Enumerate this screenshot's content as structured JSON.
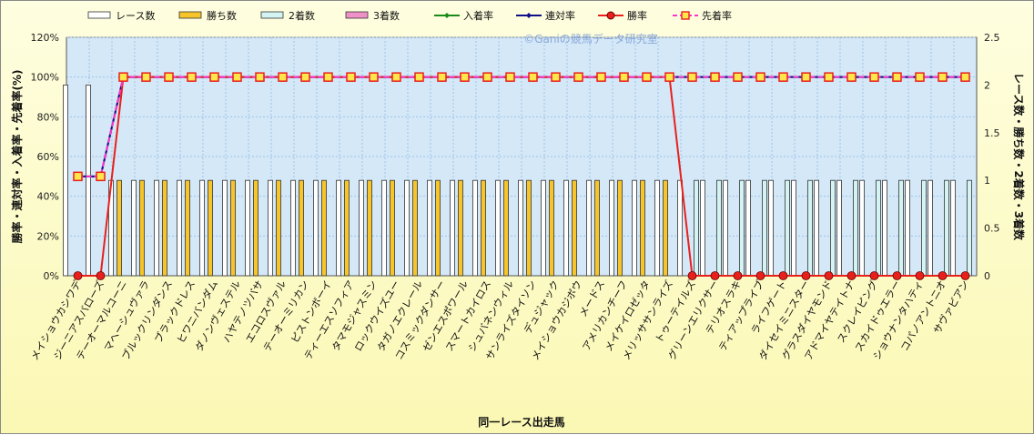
{
  "chart_data": {
    "type": "bar",
    "title": "",
    "credit": "©Ganiの競馬データ研究室",
    "xlabel": "同一レース出走馬",
    "ylabel_left": "勝率・連対率・入着率・先着率(%)",
    "ylabel_right": "レース数・勝ち数・2着数・3着数",
    "ylim_left": [
      0,
      120
    ],
    "ylim_right": [
      0,
      2.5
    ],
    "yticks_left": [
      "0%",
      "20%",
      "40%",
      "60%",
      "80%",
      "100%",
      "120%"
    ],
    "yticks_right": [
      "0",
      "0.5",
      "1",
      "1.5",
      "2",
      "2.5"
    ],
    "grid": true,
    "legend_position": "top",
    "categories": [
      "メイショウカシワデ",
      "ジーニアスバローズ",
      "テーオーマルコーニ",
      "マヘーシュヴァラ",
      "ブルックリンダンス",
      "ブラックドレス",
      "ヒワニバンダム",
      "ダノンヴェステル",
      "ハヤテノツバサ",
      "エコロスヴァル",
      "テーオーミリカン",
      "ピストンボーイ",
      "ティーエスソフィア",
      "タマモジャスミン",
      "ロックウイズユー",
      "タガノエクレール",
      "コスミックダンサー",
      "ゼンエスポワール",
      "スマートカイロス",
      "シュバネンウィル",
      "サンライズタイソン",
      "デュジャック",
      "メイショウカジボウ",
      "メードス",
      "アメリカンチーフ",
      "メイケイロゼッタ",
      "メリッササンライズ",
      "トゥーテイルズ",
      "グリーンエリクサー",
      "テリオスラキ",
      "ティアップライブ",
      "ライフゲート",
      "ダイセイミニスター",
      "グラスダイヤモンド",
      "アドマイヤテイトナ",
      "スクレイピング",
      "スカイドゥエラー",
      "ショウナンタハティ",
      "コパノアントニオ",
      "サヴァビアン"
    ],
    "series": [
      {
        "name": "レース数",
        "axis": "right",
        "kind": "bar",
        "color": "#ffffff",
        "values": [
          2,
          2,
          1,
          1,
          1,
          1,
          1,
          1,
          1,
          1,
          1,
          1,
          1,
          1,
          1,
          1,
          1,
          1,
          1,
          1,
          1,
          1,
          1,
          1,
          1,
          1,
          1,
          1,
          1,
          1,
          1,
          1,
          1,
          1,
          1,
          1,
          1,
          1,
          1,
          1
        ]
      },
      {
        "name": "勝ち数",
        "axis": "right",
        "kind": "bar",
        "color": "#f7c52a",
        "values": [
          0,
          0,
          1,
          1,
          1,
          1,
          1,
          1,
          1,
          1,
          1,
          1,
          1,
          1,
          1,
          1,
          1,
          1,
          1,
          1,
          1,
          1,
          1,
          1,
          1,
          1,
          1,
          0,
          0,
          0,
          0,
          0,
          0,
          0,
          0,
          0,
          0,
          0,
          0,
          0
        ]
      },
      {
        "name": "2着数",
        "axis": "right",
        "kind": "bar",
        "color": "#d4f3f3",
        "values": [
          0,
          0,
          0,
          0,
          0,
          0,
          0,
          0,
          0,
          0,
          0,
          0,
          0,
          0,
          0,
          0,
          0,
          0,
          0,
          0,
          0,
          0,
          0,
          0,
          0,
          0,
          0,
          1,
          1,
          1,
          1,
          1,
          1,
          1,
          1,
          1,
          1,
          1,
          1,
          1
        ]
      },
      {
        "name": "3着数",
        "axis": "right",
        "kind": "bar",
        "color": "#f090c8",
        "values": [
          0,
          0,
          0,
          0,
          0,
          0,
          0,
          0,
          0,
          0,
          0,
          0,
          0,
          0,
          0,
          0,
          0,
          0,
          0,
          0,
          0,
          0,
          0,
          0,
          0,
          0,
          0,
          0,
          0,
          0,
          0,
          0,
          0,
          0,
          0,
          0,
          0,
          0,
          0,
          0
        ]
      },
      {
        "name": "入着率",
        "axis": "left",
        "kind": "line",
        "color": "#1a8a1a",
        "marker": "diamond",
        "values": [
          50,
          50,
          100,
          100,
          100,
          100,
          100,
          100,
          100,
          100,
          100,
          100,
          100,
          100,
          100,
          100,
          100,
          100,
          100,
          100,
          100,
          100,
          100,
          100,
          100,
          100,
          100,
          100,
          100,
          100,
          100,
          100,
          100,
          100,
          100,
          100,
          100,
          100,
          100,
          100
        ]
      },
      {
        "name": "連対率",
        "axis": "left",
        "kind": "line",
        "color": "#10108a",
        "marker": "diamond",
        "values": [
          50,
          50,
          100,
          100,
          100,
          100,
          100,
          100,
          100,
          100,
          100,
          100,
          100,
          100,
          100,
          100,
          100,
          100,
          100,
          100,
          100,
          100,
          100,
          100,
          100,
          100,
          100,
          100,
          100,
          100,
          100,
          100,
          100,
          100,
          100,
          100,
          100,
          100,
          100,
          100
        ]
      },
      {
        "name": "勝率",
        "axis": "left",
        "kind": "line",
        "color": "#e8201c",
        "marker": "circle",
        "values": [
          0,
          0,
          100,
          100,
          100,
          100,
          100,
          100,
          100,
          100,
          100,
          100,
          100,
          100,
          100,
          100,
          100,
          100,
          100,
          100,
          100,
          100,
          100,
          100,
          100,
          100,
          100,
          0,
          0,
          0,
          0,
          0,
          0,
          0,
          0,
          0,
          0,
          0,
          0,
          0
        ]
      },
      {
        "name": "先着率",
        "axis": "left",
        "kind": "line",
        "color": "#ff33cc",
        "marker": "square",
        "dashed": true,
        "values": [
          50,
          50,
          100,
          100,
          100,
          100,
          100,
          100,
          100,
          100,
          100,
          100,
          100,
          100,
          100,
          100,
          100,
          100,
          100,
          100,
          100,
          100,
          100,
          100,
          100,
          100,
          100,
          100,
          100,
          100,
          100,
          100,
          100,
          100,
          100,
          100,
          100,
          100,
          100,
          100
        ]
      }
    ]
  }
}
